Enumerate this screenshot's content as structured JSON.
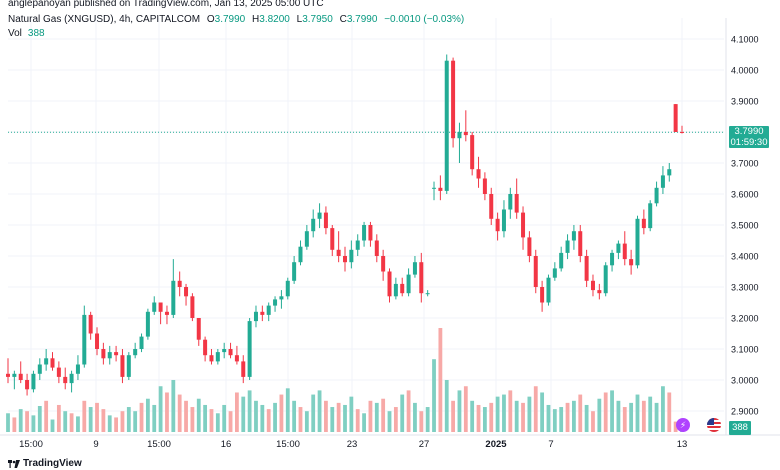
{
  "publisher": "anglepanoyan published on TradingView.com, Jan 13, 2025 05:00 UTC",
  "legend": {
    "symbol": "Natural Gas (XNGUSD), 4h, CAPITALCOM",
    "o_label": "O",
    "o_value": "3.7990",
    "h_label": "H",
    "h_value": "3.8200",
    "l_label": "L",
    "l_value": "3.7950",
    "c_label": "C",
    "c_value": "3.7990",
    "change": "−0.0010 (−0.03%)"
  },
  "volume": {
    "label": "Vol",
    "value": "388"
  },
  "current_price": {
    "price": "3.7990",
    "countdown": "01:59:30"
  },
  "price_axis": [
    "4.1000",
    "4.0000",
    "3.9000",
    "3.8000",
    "3.7000",
    "3.6000",
    "3.5000",
    "3.4000",
    "3.3000",
    "3.2000",
    "3.1000",
    "3.0000",
    "2.9000"
  ],
  "time_axis": [
    "15:00",
    "9",
    "15:00",
    "16",
    "15:00",
    "23",
    "27",
    "2025",
    "7",
    "13"
  ],
  "brand": "TradingView",
  "colors": {
    "up": "#22ab94",
    "down": "#f23645",
    "vol_up": "#7fcfc2",
    "vol_down": "#f7a9a7"
  },
  "icons": [
    "flash-icon",
    "us-flag-icon",
    "tradingview-logo-icon"
  ],
  "chart_data": {
    "type": "candlestick",
    "interval": "4h",
    "ylim": [
      2.88,
      4.12
    ],
    "candles": [
      [
        3.02,
        3.07,
        2.99,
        3.01
      ],
      [
        3.01,
        3.03,
        2.97,
        3.02
      ],
      [
        3.02,
        3.06,
        2.99,
        3.0
      ],
      [
        3.0,
        3.02,
        2.95,
        2.97
      ],
      [
        2.97,
        3.03,
        2.96,
        3.02
      ],
      [
        3.02,
        3.07,
        3.0,
        3.05
      ],
      [
        3.05,
        3.1,
        3.03,
        3.07
      ],
      [
        3.07,
        3.09,
        3.03,
        3.04
      ],
      [
        3.04,
        3.06,
        2.99,
        3.01
      ],
      [
        3.01,
        3.04,
        2.97,
        2.99
      ],
      [
        2.99,
        3.03,
        2.96,
        3.02
      ],
      [
        3.02,
        3.08,
        3.0,
        3.05
      ],
      [
        3.05,
        3.24,
        3.04,
        3.21
      ],
      [
        3.21,
        3.22,
        3.13,
        3.15
      ],
      [
        3.15,
        3.17,
        3.08,
        3.1
      ],
      [
        3.1,
        3.12,
        3.05,
        3.07
      ],
      [
        3.07,
        3.11,
        3.05,
        3.09
      ],
      [
        3.09,
        3.11,
        3.06,
        3.08
      ],
      [
        3.08,
        3.1,
        2.99,
        3.01
      ],
      [
        3.01,
        3.09,
        3.0,
        3.08
      ],
      [
        3.08,
        3.12,
        3.07,
        3.1
      ],
      [
        3.1,
        3.15,
        3.09,
        3.14
      ],
      [
        3.14,
        3.23,
        3.13,
        3.22
      ],
      [
        3.22,
        3.27,
        3.21,
        3.25
      ],
      [
        3.25,
        3.25,
        3.18,
        3.22
      ],
      [
        3.22,
        3.24,
        3.18,
        3.21
      ],
      [
        3.21,
        3.39,
        3.2,
        3.32
      ],
      [
        3.32,
        3.35,
        3.27,
        3.3
      ],
      [
        3.3,
        3.31,
        3.24,
        3.27
      ],
      [
        3.27,
        3.28,
        3.19,
        3.2
      ],
      [
        3.2,
        3.2,
        3.11,
        3.13
      ],
      [
        3.13,
        3.14,
        3.06,
        3.08
      ],
      [
        3.08,
        3.1,
        3.05,
        3.06
      ],
      [
        3.06,
        3.1,
        3.05,
        3.09
      ],
      [
        3.09,
        3.12,
        3.07,
        3.1
      ],
      [
        3.1,
        3.12,
        3.07,
        3.08
      ],
      [
        3.08,
        3.11,
        3.05,
        3.06
      ],
      [
        3.06,
        3.08,
        2.99,
        3.01
      ],
      [
        3.01,
        3.2,
        3.0,
        3.19
      ],
      [
        3.19,
        3.24,
        3.17,
        3.22
      ],
      [
        3.22,
        3.24,
        3.19,
        3.21
      ],
      [
        3.21,
        3.25,
        3.19,
        3.24
      ],
      [
        3.24,
        3.27,
        3.22,
        3.26
      ],
      [
        3.26,
        3.29,
        3.23,
        3.27
      ],
      [
        3.27,
        3.33,
        3.26,
        3.32
      ],
      [
        3.32,
        3.4,
        3.31,
        3.38
      ],
      [
        3.38,
        3.45,
        3.37,
        3.43
      ],
      [
        3.43,
        3.5,
        3.42,
        3.48
      ],
      [
        3.48,
        3.55,
        3.46,
        3.52
      ],
      [
        3.52,
        3.57,
        3.49,
        3.54
      ],
      [
        3.54,
        3.56,
        3.47,
        3.49
      ],
      [
        3.49,
        3.5,
        3.4,
        3.42
      ],
      [
        3.42,
        3.48,
        3.38,
        3.4
      ],
      [
        3.4,
        3.43,
        3.35,
        3.38
      ],
      [
        3.38,
        3.45,
        3.36,
        3.42
      ],
      [
        3.42,
        3.47,
        3.4,
        3.45
      ],
      [
        3.45,
        3.51,
        3.43,
        3.5
      ],
      [
        3.5,
        3.51,
        3.43,
        3.45
      ],
      [
        3.45,
        3.47,
        3.38,
        3.4
      ],
      [
        3.4,
        3.42,
        3.32,
        3.35
      ],
      [
        3.35,
        3.36,
        3.25,
        3.27
      ],
      [
        3.27,
        3.33,
        3.26,
        3.31
      ],
      [
        3.31,
        3.33,
        3.27,
        3.28
      ],
      [
        3.28,
        3.36,
        3.27,
        3.34
      ],
      [
        3.34,
        3.4,
        3.33,
        3.38
      ],
      [
        3.38,
        3.41,
        3.25,
        3.28
      ],
      [
        3.28,
        3.29,
        3.27,
        3.28
      ],
      [
        3.62,
        3.64,
        3.58,
        3.62
      ],
      [
        3.62,
        3.66,
        3.58,
        3.61
      ],
      [
        3.61,
        4.05,
        3.6,
        4.03
      ],
      [
        4.03,
        4.04,
        3.75,
        3.78
      ],
      [
        3.78,
        3.83,
        3.7,
        3.8
      ],
      [
        3.8,
        3.87,
        3.77,
        3.79
      ],
      [
        3.79,
        3.8,
        3.66,
        3.68
      ],
      [
        3.68,
        3.72,
        3.62,
        3.65
      ],
      [
        3.65,
        3.67,
        3.58,
        3.6
      ],
      [
        3.6,
        3.62,
        3.5,
        3.52
      ],
      [
        3.52,
        3.54,
        3.45,
        3.48
      ],
      [
        3.48,
        3.58,
        3.46,
        3.55
      ],
      [
        3.55,
        3.62,
        3.52,
        3.6
      ],
      [
        3.6,
        3.65,
        3.52,
        3.54
      ],
      [
        3.54,
        3.56,
        3.42,
        3.46
      ],
      [
        3.46,
        3.48,
        3.38,
        3.4
      ],
      [
        3.4,
        3.42,
        3.28,
        3.3
      ],
      [
        3.3,
        3.32,
        3.22,
        3.25
      ],
      [
        3.25,
        3.34,
        3.24,
        3.33
      ],
      [
        3.33,
        3.38,
        3.32,
        3.36
      ],
      [
        3.36,
        3.43,
        3.35,
        3.41
      ],
      [
        3.41,
        3.47,
        3.39,
        3.45
      ],
      [
        3.45,
        3.5,
        3.42,
        3.48
      ],
      [
        3.48,
        3.5,
        3.38,
        3.4
      ],
      [
        3.4,
        3.42,
        3.3,
        3.32
      ],
      [
        3.32,
        3.34,
        3.27,
        3.29
      ],
      [
        3.29,
        3.31,
        3.26,
        3.28
      ],
      [
        3.28,
        3.38,
        3.27,
        3.37
      ],
      [
        3.37,
        3.42,
        3.35,
        3.41
      ],
      [
        3.41,
        3.45,
        3.39,
        3.44
      ],
      [
        3.44,
        3.48,
        3.37,
        3.39
      ],
      [
        3.39,
        3.42,
        3.34,
        3.37
      ],
      [
        3.37,
        3.53,
        3.36,
        3.52
      ],
      [
        3.52,
        3.55,
        3.47,
        3.49
      ],
      [
        3.49,
        3.58,
        3.48,
        3.57
      ],
      [
        3.57,
        3.64,
        3.56,
        3.62
      ],
      [
        3.62,
        3.69,
        3.6,
        3.66
      ],
      [
        3.66,
        3.7,
        3.64,
        3.68
      ],
      [
        3.89,
        3.89,
        3.8,
        3.8
      ],
      [
        3.8,
        3.82,
        3.795,
        3.799
      ]
    ],
    "volumes": [
      [
        18,
        1
      ],
      [
        14,
        0
      ],
      [
        22,
        1
      ],
      [
        20,
        0
      ],
      [
        16,
        1
      ],
      [
        25,
        1
      ],
      [
        30,
        0
      ],
      [
        12,
        1
      ],
      [
        26,
        0
      ],
      [
        20,
        1
      ],
      [
        18,
        0
      ],
      [
        15,
        1
      ],
      [
        30,
        0
      ],
      [
        24,
        1
      ],
      [
        28,
        0
      ],
      [
        22,
        0
      ],
      [
        16,
        1
      ],
      [
        14,
        0
      ],
      [
        20,
        0
      ],
      [
        24,
        1
      ],
      [
        20,
        1
      ],
      [
        28,
        0
      ],
      [
        32,
        1
      ],
      [
        26,
        1
      ],
      [
        44,
        1
      ],
      [
        38,
        0
      ],
      [
        50,
        1
      ],
      [
        36,
        0
      ],
      [
        30,
        0
      ],
      [
        24,
        0
      ],
      [
        32,
        1
      ],
      [
        26,
        1
      ],
      [
        22,
        0
      ],
      [
        18,
        1
      ],
      [
        26,
        1
      ],
      [
        20,
        0
      ],
      [
        38,
        0
      ],
      [
        34,
        1
      ],
      [
        40,
        1
      ],
      [
        30,
        1
      ],
      [
        26,
        1
      ],
      [
        22,
        0
      ],
      [
        28,
        1
      ],
      [
        36,
        0
      ],
      [
        42,
        1
      ],
      [
        30,
        1
      ],
      [
        24,
        0
      ],
      [
        20,
        1
      ],
      [
        36,
        1
      ],
      [
        40,
        1
      ],
      [
        30,
        0
      ],
      [
        24,
        1
      ],
      [
        28,
        0
      ],
      [
        26,
        1
      ],
      [
        34,
        1
      ],
      [
        22,
        0
      ],
      [
        18,
        1
      ],
      [
        30,
        0
      ],
      [
        28,
        1
      ],
      [
        32,
        0
      ],
      [
        20,
        1
      ],
      [
        24,
        0
      ],
      [
        36,
        1
      ],
      [
        40,
        0
      ],
      [
        28,
        1
      ],
      [
        20,
        0
      ],
      [
        24,
        1
      ],
      [
        70,
        1
      ],
      [
        100,
        0
      ],
      [
        50,
        1
      ],
      [
        30,
        0
      ],
      [
        40,
        1
      ],
      [
        44,
        0
      ],
      [
        30,
        1
      ],
      [
        26,
        0
      ],
      [
        24,
        1
      ],
      [
        28,
        0
      ],
      [
        34,
        1
      ],
      [
        36,
        1
      ],
      [
        40,
        0
      ],
      [
        30,
        1
      ],
      [
        28,
        0
      ],
      [
        34,
        1
      ],
      [
        44,
        0
      ],
      [
        38,
        1
      ],
      [
        26,
        1
      ],
      [
        22,
        1
      ],
      [
        24,
        1
      ],
      [
        28,
        0
      ],
      [
        30,
        1
      ],
      [
        36,
        0
      ],
      [
        26,
        1
      ],
      [
        20,
        0
      ],
      [
        32,
        1
      ],
      [
        38,
        0
      ],
      [
        40,
        1
      ],
      [
        30,
        1
      ],
      [
        24,
        0
      ],
      [
        28,
        1
      ],
      [
        36,
        1
      ],
      [
        30,
        0
      ],
      [
        34,
        1
      ],
      [
        28,
        1
      ],
      [
        44,
        1
      ],
      [
        38,
        0
      ],
      [
        10,
        0
      ],
      [
        6,
        1
      ]
    ],
    "last_price": 3.799,
    "title": "Natural Gas (XNGUSD), 4h, CAPITALCOM",
    "xlabel": "",
    "ylabel": ""
  }
}
